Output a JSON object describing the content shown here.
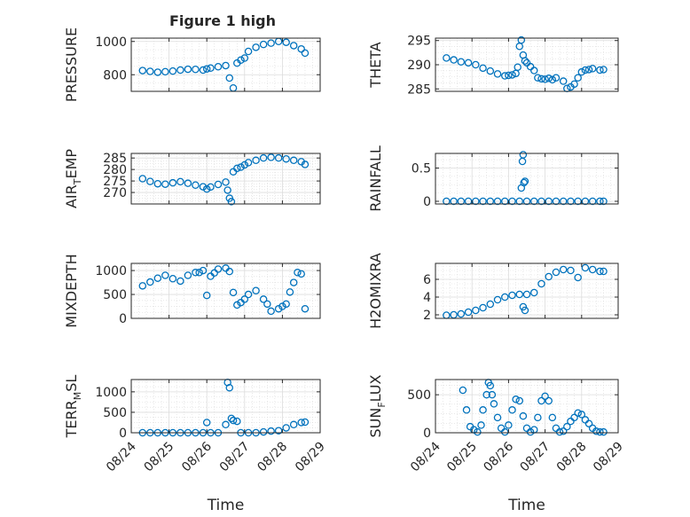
{
  "figure": {
    "title": "Figure 1 high",
    "x_tick_labels": [
      "08/24",
      "08/25",
      "08/26",
      "08/27",
      "08/28",
      "08/29"
    ],
    "marker_color": "#0072BD"
  },
  "chart_data": [
    {
      "type": "scatter",
      "id": "pressure",
      "ylabel": "PRESSURE",
      "xlabel": "",
      "xlim": [
        0,
        5
      ],
      "ylim": [
        700,
        1020
      ],
      "yticks": [
        800,
        1000
      ],
      "x_tick_labels_shown": false,
      "series": [
        {
          "x": [
            0.3,
            0.5,
            0.7,
            0.9,
            1.1,
            1.3,
            1.5,
            1.7,
            1.9,
            2.0,
            2.1,
            2.3,
            2.5,
            2.6,
            2.7,
            2.8,
            2.9,
            3.0,
            3.1,
            3.3,
            3.5,
            3.7,
            3.9,
            4.1,
            4.3,
            4.5,
            4.6
          ],
          "y": [
            825,
            820,
            815,
            818,
            822,
            828,
            833,
            832,
            828,
            835,
            840,
            848,
            855,
            780,
            720,
            870,
            888,
            900,
            940,
            965,
            982,
            990,
            1000,
            995,
            975,
            955,
            930
          ]
        }
      ]
    },
    {
      "type": "scatter",
      "id": "theta",
      "ylabel": "THETA",
      "xlabel": "",
      "xlim": [
        0,
        5
      ],
      "ylim": [
        284.5,
        295.5
      ],
      "yticks": [
        285,
        290,
        295
      ],
      "x_tick_labels_shown": false,
      "series": [
        {
          "x": [
            0.3,
            0.5,
            0.7,
            0.9,
            1.1,
            1.3,
            1.5,
            1.7,
            1.9,
            2.0,
            2.1,
            2.2,
            2.25,
            2.3,
            2.35,
            2.4,
            2.45,
            2.5,
            2.6,
            2.7,
            2.8,
            2.9,
            3.0,
            3.1,
            3.2,
            3.3,
            3.5,
            3.6,
            3.7,
            3.8,
            3.9,
            4.0,
            4.1,
            4.2,
            4.3,
            4.5,
            4.6
          ],
          "y": [
            291.4,
            291.0,
            290.6,
            290.4,
            290.0,
            289.3,
            288.7,
            288.1,
            287.7,
            287.8,
            287.9,
            288.2,
            289.5,
            293.8,
            295.1,
            292.0,
            290.8,
            290.4,
            289.6,
            288.8,
            287.3,
            287.1,
            287.0,
            287.2,
            286.9,
            287.3,
            286.6,
            285.1,
            285.4,
            286.0,
            287.3,
            288.5,
            288.9,
            289.0,
            289.2,
            288.9,
            289.0
          ]
        }
      ]
    },
    {
      "type": "scatter",
      "id": "air-temp",
      "ylabel": "AIR_TEMP",
      "xlabel": "",
      "xlim": [
        0,
        5
      ],
      "ylim": [
        265,
        287
      ],
      "yticks": [
        270,
        275,
        280,
        285
      ],
      "x_tick_labels_shown": false,
      "series": [
        {
          "x": [
            0.3,
            0.5,
            0.7,
            0.9,
            1.1,
            1.3,
            1.5,
            1.7,
            1.9,
            2.0,
            2.1,
            2.3,
            2.5,
            2.55,
            2.6,
            2.65,
            2.7,
            2.8,
            2.9,
            3.0,
            3.1,
            3.3,
            3.5,
            3.7,
            3.9,
            4.1,
            4.3,
            4.5,
            4.6
          ],
          "y": [
            276.0,
            274.8,
            273.8,
            273.6,
            274.2,
            274.7,
            274.0,
            273.2,
            272.5,
            271.5,
            272.4,
            273.5,
            274.5,
            271.0,
            267.5,
            266.0,
            279.0,
            280.5,
            281.0,
            282.0,
            283.0,
            284.0,
            285.0,
            285.3,
            285.0,
            284.6,
            284.0,
            283.4,
            282.2
          ]
        }
      ]
    },
    {
      "type": "scatter",
      "id": "rainfall",
      "ylabel": "RAINFALL",
      "xlabel": "",
      "xlim": [
        0,
        5
      ],
      "ylim": [
        -0.04,
        0.72
      ],
      "yticks": [
        0,
        0.5
      ],
      "x_tick_labels_shown": false,
      "series": [
        {
          "x": [
            0.3,
            0.5,
            0.7,
            0.9,
            1.1,
            1.3,
            1.5,
            1.7,
            1.9,
            2.1,
            2.3,
            2.35,
            2.38,
            2.4,
            2.42,
            2.45,
            2.5,
            2.7,
            2.9,
            3.1,
            3.3,
            3.5,
            3.7,
            3.9,
            4.1,
            4.3,
            4.5,
            4.6
          ],
          "y": [
            0,
            0,
            0,
            0,
            0,
            0,
            0,
            0,
            0,
            0,
            0,
            0.2,
            0.6,
            0.7,
            0.28,
            0.3,
            0,
            0,
            0,
            0,
            0,
            0,
            0,
            0,
            0,
            0,
            0,
            0
          ]
        }
      ]
    },
    {
      "type": "scatter",
      "id": "mixdepth",
      "ylabel": "MIXDEPTH",
      "xlabel": "",
      "xlim": [
        0,
        5
      ],
      "ylim": [
        0,
        1150
      ],
      "yticks": [
        0,
        500,
        1000
      ],
      "x_tick_labels_shown": false,
      "series": [
        {
          "x": [
            0.3,
            0.5,
            0.7,
            0.9,
            1.1,
            1.3,
            1.5,
            1.7,
            1.8,
            1.9,
            2.0,
            2.1,
            2.2,
            2.3,
            2.5,
            2.6,
            2.7,
            2.8,
            2.9,
            3.0,
            3.1,
            3.3,
            3.5,
            3.6,
            3.7,
            3.9,
            4.0,
            4.1,
            4.2,
            4.3,
            4.4,
            4.5,
            4.6
          ],
          "y": [
            680,
            760,
            840,
            900,
            830,
            780,
            900,
            960,
            960,
            1000,
            480,
            880,
            950,
            1030,
            1050,
            980,
            540,
            280,
            330,
            400,
            500,
            580,
            400,
            300,
            150,
            200,
            250,
            300,
            550,
            750,
            960,
            930,
            200
          ]
        }
      ]
    },
    {
      "type": "scatter",
      "id": "h2omixra",
      "ylabel": "H2OMIXRA",
      "xlabel": "",
      "xlim": [
        0,
        5
      ],
      "ylim": [
        1.6,
        7.8
      ],
      "yticks": [
        2,
        4,
        6
      ],
      "x_tick_labels_shown": false,
      "series": [
        {
          "x": [
            0.3,
            0.5,
            0.7,
            0.9,
            1.1,
            1.3,
            1.5,
            1.7,
            1.9,
            2.1,
            2.3,
            2.4,
            2.45,
            2.5,
            2.7,
            2.9,
            3.1,
            3.3,
            3.5,
            3.7,
            3.9,
            4.1,
            4.3,
            4.5,
            4.6
          ],
          "y": [
            1.95,
            2.0,
            2.1,
            2.3,
            2.5,
            2.8,
            3.2,
            3.7,
            4.0,
            4.2,
            4.3,
            2.9,
            2.5,
            4.3,
            4.5,
            5.5,
            6.3,
            6.8,
            7.1,
            7.0,
            6.2,
            7.3,
            7.1,
            6.9,
            6.9
          ]
        }
      ]
    },
    {
      "type": "scatter",
      "id": "terr-msl",
      "ylabel": "TERR_MSL",
      "xlabel": "Time",
      "xlim": [
        0,
        5
      ],
      "ylim": [
        0,
        1300
      ],
      "yticks": [
        0,
        500,
        1000
      ],
      "x_tick_labels_shown": true,
      "series": [
        {
          "x": [
            0.3,
            0.5,
            0.7,
            0.9,
            1.1,
            1.3,
            1.5,
            1.7,
            1.9,
            2.0,
            2.1,
            2.3,
            2.5,
            2.55,
            2.6,
            2.65,
            2.7,
            2.8,
            2.9,
            3.1,
            3.3,
            3.5,
            3.7,
            3.9,
            4.1,
            4.3,
            4.5,
            4.6
          ],
          "y": [
            0,
            0,
            0,
            0,
            0,
            0,
            0,
            0,
            0,
            250,
            0,
            0,
            200,
            1230,
            1100,
            350,
            300,
            280,
            0,
            0,
            0,
            20,
            40,
            50,
            120,
            200,
            250,
            260
          ]
        }
      ]
    },
    {
      "type": "scatter",
      "id": "sun-flux",
      "ylabel": "SUN_FLUX",
      "xlabel": "Time",
      "xlim": [
        0,
        5
      ],
      "ylim": [
        0,
        700
      ],
      "yticks": [
        0,
        500
      ],
      "x_tick_labels_shown": true,
      "series": [
        {
          "x": [
            0.75,
            0.85,
            0.95,
            1.05,
            1.15,
            1.25,
            1.3,
            1.4,
            1.45,
            1.5,
            1.55,
            1.6,
            1.7,
            1.8,
            1.9,
            2.0,
            2.1,
            2.2,
            2.3,
            2.4,
            2.5,
            2.6,
            2.7,
            2.8,
            2.9,
            3.0,
            3.1,
            3.2,
            3.3,
            3.4,
            3.5,
            3.6,
            3.7,
            3.8,
            3.9,
            4.0,
            4.1,
            4.2,
            4.3,
            4.4,
            4.5,
            4.6
          ],
          "y": [
            560,
            300,
            80,
            40,
            10,
            100,
            300,
            500,
            660,
            620,
            500,
            380,
            200,
            60,
            10,
            100,
            300,
            440,
            420,
            220,
            60,
            10,
            40,
            200,
            420,
            480,
            420,
            200,
            60,
            10,
            20,
            80,
            150,
            200,
            260,
            240,
            170,
            120,
            60,
            20,
            10,
            10
          ]
        }
      ]
    }
  ]
}
